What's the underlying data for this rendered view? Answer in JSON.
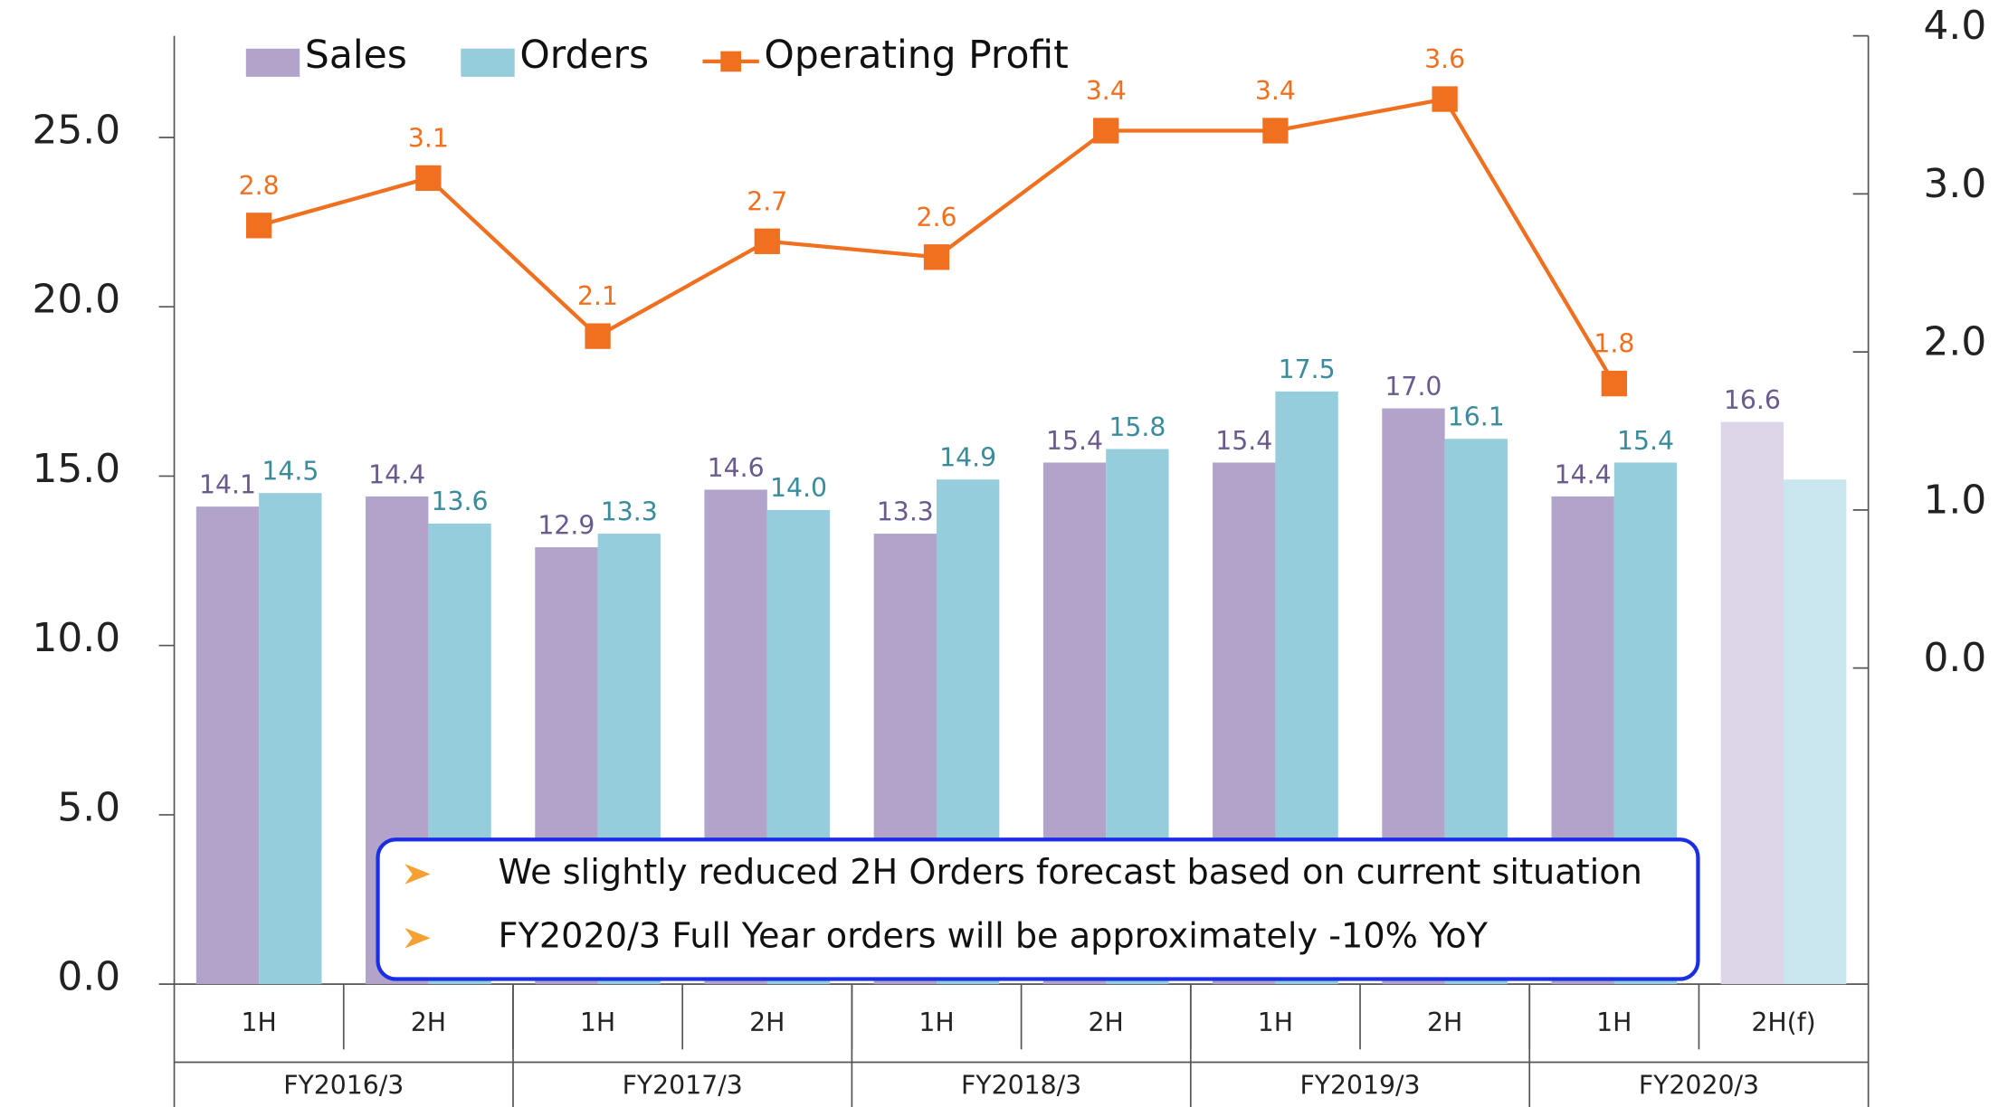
{
  "chart_data": {
    "type": "bar",
    "categories": [
      "1H",
      "2H",
      "1H",
      "2H",
      "1H",
      "2H",
      "1H",
      "2H",
      "1H",
      "2H(f)"
    ],
    "groups": [
      {
        "label": "FY2016/3",
        "span": 2
      },
      {
        "label": "FY2017/3",
        "span": 2
      },
      {
        "label": "FY2018/3",
        "span": 2
      },
      {
        "label": "FY2019/3",
        "span": 2
      },
      {
        "label": "FY2020/3",
        "span": 2
      }
    ],
    "series": [
      {
        "name": "Sales",
        "type": "bar",
        "color": "#b1a3c9",
        "forecast_color": "#ddd6e8",
        "label_color": "#6b5a8e",
        "values": [
          14.1,
          14.4,
          12.9,
          14.6,
          13.3,
          15.4,
          15.4,
          17.0,
          14.4,
          16.6
        ],
        "value_labels": [
          "14.1",
          "14.4",
          "12.9",
          "14.6",
          "13.3",
          "15.4",
          "15.4",
          "17.0",
          "14.4",
          "16.6"
        ]
      },
      {
        "name": "Orders",
        "type": "bar",
        "color": "#95cddc",
        "forecast_color": "#c9e6ee",
        "label_color": "#3a8c9c",
        "values": [
          14.5,
          13.6,
          13.3,
          14.0,
          14.9,
          15.8,
          17.5,
          16.1,
          15.4,
          14.9
        ],
        "value_labels": [
          "14.5",
          "13.6",
          "13.3",
          "14.0",
          "14.9",
          "15.8",
          "17.5",
          "16.1",
          "15.4",
          null
        ]
      },
      {
        "name": "Operating Profit",
        "type": "line",
        "axis": "y2",
        "color": "#f07020",
        "label_color": "#f07020",
        "values": [
          2.8,
          3.1,
          2.1,
          2.7,
          2.6,
          3.4,
          3.4,
          3.6,
          1.8,
          null
        ],
        "value_labels": [
          "2.8",
          "3.1",
          "2.1",
          "2.7",
          "2.6",
          "3.4",
          "3.4",
          "3.6",
          "1.8",
          null
        ]
      }
    ],
    "forecast_index": 9,
    "ylim": [
      0,
      28
    ],
    "yticks": [
      {
        "value": 0,
        "label": "0.0"
      },
      {
        "value": 5,
        "label": "5.0"
      },
      {
        "value": 10,
        "label": "10.0"
      },
      {
        "value": 15,
        "label": "15.0"
      },
      {
        "value": 20,
        "label": "20.0"
      },
      {
        "value": 25,
        "label": "25.0"
      }
    ],
    "y2lim": [
      -2,
      4
    ],
    "y2ticks": [
      {
        "value": 0,
        "label": "0.0"
      },
      {
        "value": 1,
        "label": "1.0"
      },
      {
        "value": 2,
        "label": "2.0"
      },
      {
        "value": 3,
        "label": "3.0"
      },
      {
        "value": 4,
        "label": "4.0"
      }
    ],
    "legend": "top",
    "annotations": [
      "We slightly reduced 2H Orders forecast based on current situation",
      "FY2020/3 Full Year orders will be approximately -10% YoY"
    ]
  }
}
